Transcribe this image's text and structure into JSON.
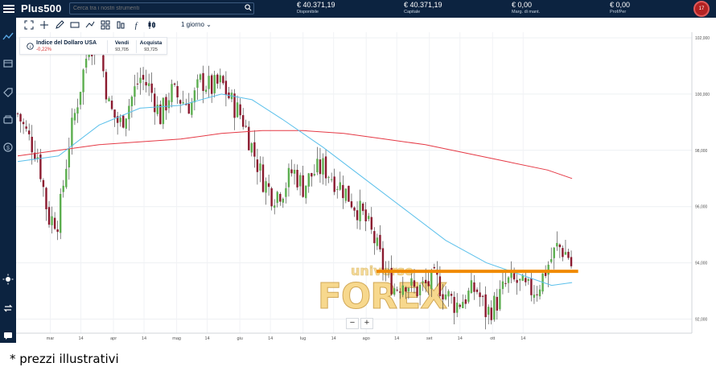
{
  "header": {
    "logo": "Plus500",
    "search_placeholder": "Cerca tra i nostri strumenti",
    "stats": [
      {
        "value": "€ 40.371,19",
        "label": "Disponibile"
      },
      {
        "value": "€ 40.371,19",
        "label": "Capitale"
      },
      {
        "value": "€ 0,00",
        "label": "Marg. di mant."
      },
      {
        "value": "€ 0,00",
        "label": "Prof/Per"
      }
    ],
    "avatar": "17"
  },
  "toolbar": {
    "timeframe": "1 giorno"
  },
  "instrument": {
    "name": "Indice del Dollaro USA",
    "change": "-0,22%",
    "sell_label": "Vendi",
    "sell_value": "93,705",
    "buy_label": "Acquista",
    "buy_value": "93,725"
  },
  "watermark": {
    "top": "universo",
    "main": "FOREX"
  },
  "zoom": {
    "minus": "−",
    "plus": "+"
  },
  "footnote": "* prezzi illustrativi",
  "colors": {
    "up": "#5cae4f",
    "down": "#8b1a2f",
    "ma_fast": "#5bc0eb",
    "ma_slow": "#e53945",
    "support_line": "#f08a00",
    "navy": "#0c2340"
  },
  "chart_data": {
    "type": "candlestick",
    "ylim": [
      91.5,
      102.2
    ],
    "y_ticks": [
      "102,000",
      "100,000",
      "98,000",
      "96,000",
      "94,000",
      "92,000"
    ],
    "x_labels": [
      "mar",
      "14",
      "apr",
      "14",
      "mag",
      "14",
      "giu",
      "14",
      "lug",
      "14",
      "ago",
      "14",
      "set",
      "14",
      "ott",
      "14"
    ],
    "support_level": 93.7,
    "ohlc_anchors": [
      {
        "d": 0,
        "c": 99.3
      },
      {
        "d": 5,
        "c": 98.5
      },
      {
        "d": 10,
        "c": 97.8
      },
      {
        "d": 15,
        "c": 95.6
      },
      {
        "d": 20,
        "c": 95.5
      },
      {
        "d": 25,
        "c": 98.2
      },
      {
        "d": 30,
        "c": 100.0
      },
      {
        "d": 35,
        "c": 101.8
      },
      {
        "d": 40,
        "c": 101.7
      },
      {
        "d": 45,
        "c": 99.5
      },
      {
        "d": 50,
        "c": 98.9
      },
      {
        "d": 55,
        "c": 99.7
      },
      {
        "d": 60,
        "c": 100.6
      },
      {
        "d": 65,
        "c": 100.2
      },
      {
        "d": 70,
        "c": 99.2
      },
      {
        "d": 75,
        "c": 100.1
      },
      {
        "d": 80,
        "c": 99.8
      },
      {
        "d": 85,
        "c": 99.6
      },
      {
        "d": 90,
        "c": 100.5
      },
      {
        "d": 95,
        "c": 100.2
      },
      {
        "d": 100,
        "c": 100.4
      },
      {
        "d": 105,
        "c": 99.7
      },
      {
        "d": 110,
        "c": 99.2
      },
      {
        "d": 115,
        "c": 98.1
      },
      {
        "d": 120,
        "c": 97.0
      },
      {
        "d": 125,
        "c": 96.4
      },
      {
        "d": 130,
        "c": 96.6
      },
      {
        "d": 135,
        "c": 97.3
      },
      {
        "d": 140,
        "c": 96.7
      },
      {
        "d": 145,
        "c": 97.2
      },
      {
        "d": 150,
        "c": 97.4
      },
      {
        "d": 155,
        "c": 97.0
      },
      {
        "d": 160,
        "c": 96.6
      },
      {
        "d": 165,
        "c": 96.1
      },
      {
        "d": 170,
        "c": 95.6
      },
      {
        "d": 175,
        "c": 94.8
      },
      {
        "d": 180,
        "c": 93.7
      },
      {
        "d": 185,
        "c": 93.1
      },
      {
        "d": 190,
        "c": 93.4
      },
      {
        "d": 195,
        "c": 93.0
      },
      {
        "d": 200,
        "c": 93.2
      },
      {
        "d": 205,
        "c": 93.4
      },
      {
        "d": 210,
        "c": 92.9
      },
      {
        "d": 215,
        "c": 92.5
      },
      {
        "d": 220,
        "c": 92.8
      },
      {
        "d": 225,
        "c": 93.1
      },
      {
        "d": 230,
        "c": 92.2
      },
      {
        "d": 235,
        "c": 92.6
      },
      {
        "d": 240,
        "c": 93.3
      },
      {
        "d": 245,
        "c": 93.3
      },
      {
        "d": 250,
        "c": 93.0
      },
      {
        "d": 255,
        "c": 93.1
      },
      {
        "d": 260,
        "c": 93.9
      },
      {
        "d": 265,
        "c": 94.6
      },
      {
        "d": 270,
        "c": 94.3
      },
      {
        "d": 272,
        "c": 93.8
      }
    ],
    "ma_fast": [
      {
        "d": 0,
        "v": 97.6
      },
      {
        "d": 20,
        "v": 97.8
      },
      {
        "d": 40,
        "v": 98.9
      },
      {
        "d": 60,
        "v": 99.5
      },
      {
        "d": 80,
        "v": 99.6
      },
      {
        "d": 100,
        "v": 100.0
      },
      {
        "d": 115,
        "v": 99.8
      },
      {
        "d": 130,
        "v": 99.1
      },
      {
        "d": 150,
        "v": 98.1
      },
      {
        "d": 170,
        "v": 97.0
      },
      {
        "d": 190,
        "v": 95.9
      },
      {
        "d": 210,
        "v": 94.8
      },
      {
        "d": 230,
        "v": 94.0
      },
      {
        "d": 250,
        "v": 93.5
      },
      {
        "d": 262,
        "v": 93.2
      },
      {
        "d": 272,
        "v": 93.3
      }
    ],
    "ma_slow": [
      {
        "d": 0,
        "v": 97.8
      },
      {
        "d": 20,
        "v": 98.0
      },
      {
        "d": 40,
        "v": 98.2
      },
      {
        "d": 60,
        "v": 98.3
      },
      {
        "d": 80,
        "v": 98.4
      },
      {
        "d": 100,
        "v": 98.6
      },
      {
        "d": 120,
        "v": 98.7
      },
      {
        "d": 140,
        "v": 98.7
      },
      {
        "d": 160,
        "v": 98.6
      },
      {
        "d": 180,
        "v": 98.4
      },
      {
        "d": 200,
        "v": 98.2
      },
      {
        "d": 220,
        "v": 97.9
      },
      {
        "d": 240,
        "v": 97.6
      },
      {
        "d": 260,
        "v": 97.3
      },
      {
        "d": 272,
        "v": 97.0
      }
    ]
  }
}
